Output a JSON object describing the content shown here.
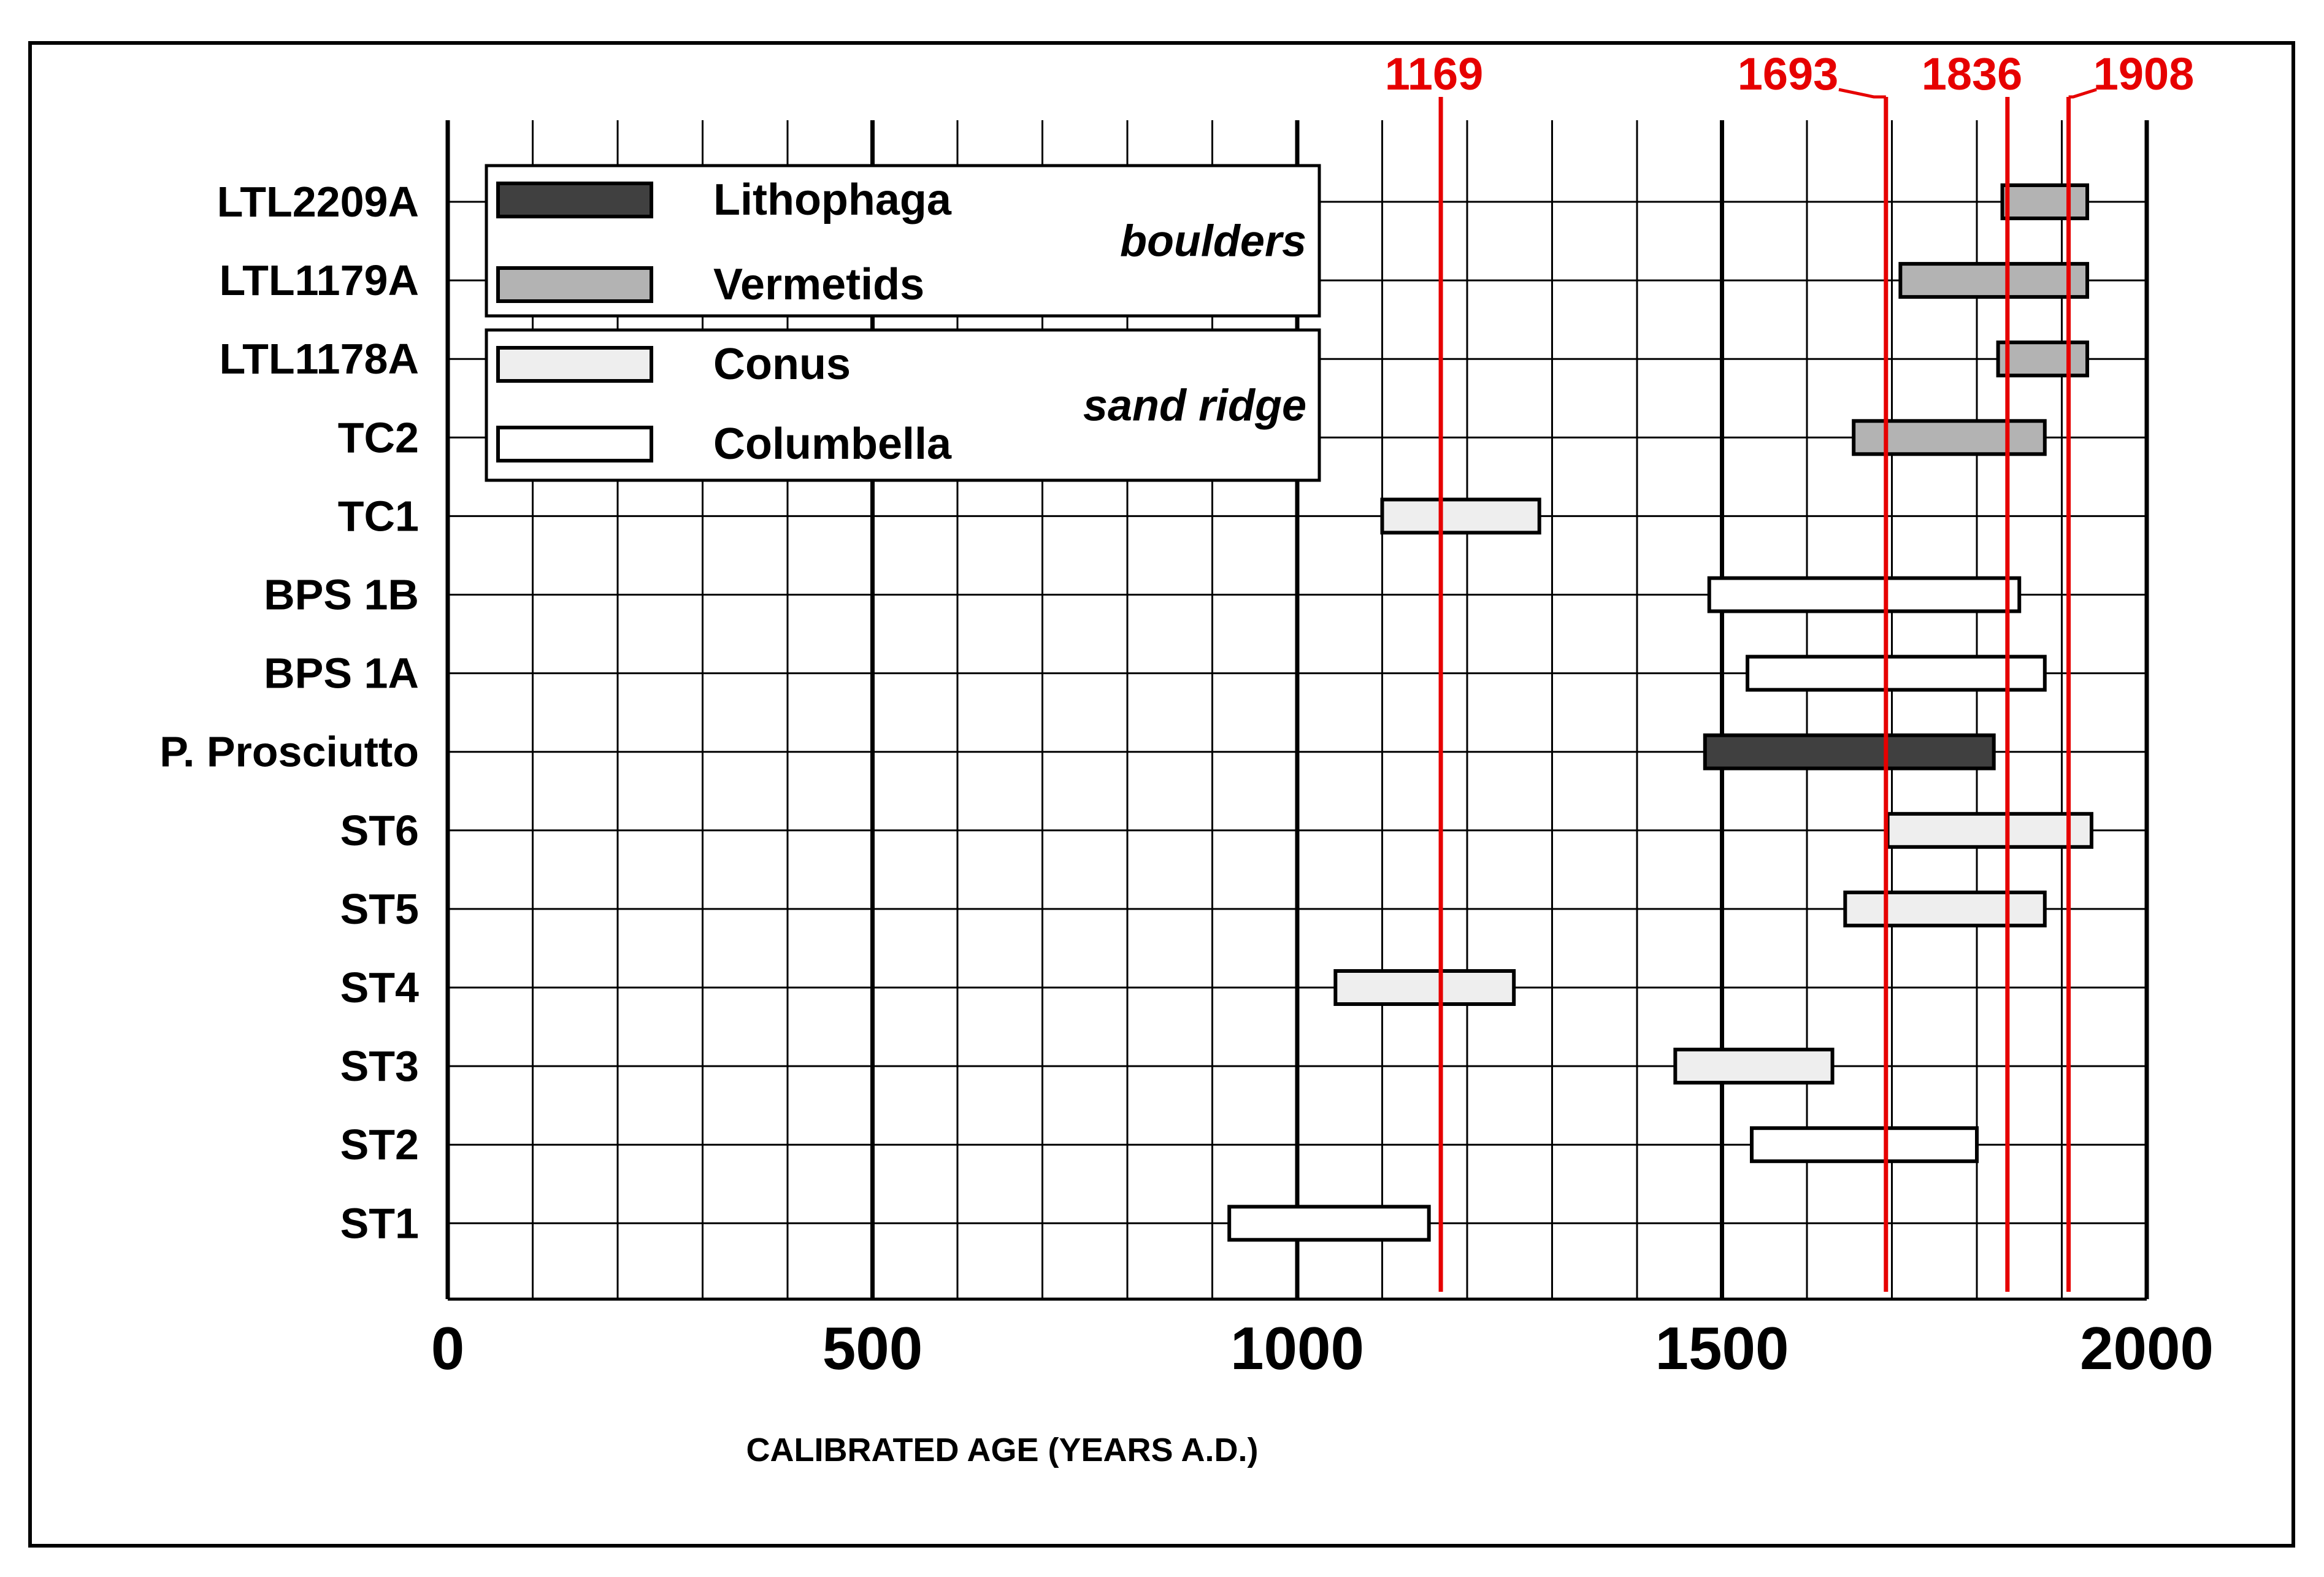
{
  "chart_data": {
    "type": "bar",
    "subtype": "floating-range",
    "xlabel": "CALIBRATED AGE (YEARS A.D.)",
    "xlim": [
      0,
      2000
    ],
    "x_ticks": [
      0,
      500,
      1000,
      1500,
      2000
    ],
    "x_minor_step": 100,
    "grid": true,
    "legend_position": "top-left",
    "categories": [
      "LTL2209A",
      "LTL1179A",
      "LTL1178A",
      "TC2",
      "TC1",
      "BPS 1B",
      "BPS 1A",
      "P. Prosciutto",
      "ST6",
      "ST5",
      "ST4",
      "ST3",
      "ST2",
      "ST1"
    ],
    "ranges": [
      {
        "label": "LTL2209A",
        "start": 1830,
        "end": 1930,
        "series": "Vermetids"
      },
      {
        "label": "LTL1179A",
        "start": 1710,
        "end": 1930,
        "series": "Vermetids"
      },
      {
        "label": "LTL1178A",
        "start": 1825,
        "end": 1930,
        "series": "Vermetids"
      },
      {
        "label": "TC2",
        "start": 1655,
        "end": 1880,
        "series": "Vermetids"
      },
      {
        "label": "TC1",
        "start": 1100,
        "end": 1285,
        "series": "Conus"
      },
      {
        "label": "BPS 1B",
        "start": 1485,
        "end": 1850,
        "series": "Columbella"
      },
      {
        "label": "BPS 1A",
        "start": 1530,
        "end": 1880,
        "series": "Columbella"
      },
      {
        "label": "P. Prosciutto",
        "start": 1480,
        "end": 1820,
        "series": "Lithophaga"
      },
      {
        "label": "ST6",
        "start": 1695,
        "end": 1935,
        "series": "Conus"
      },
      {
        "label": "ST5",
        "start": 1645,
        "end": 1880,
        "series": "Conus"
      },
      {
        "label": "ST4",
        "start": 1045,
        "end": 1255,
        "series": "Conus"
      },
      {
        "label": "ST3",
        "start": 1445,
        "end": 1630,
        "series": "Conus"
      },
      {
        "label": "ST2",
        "start": 1535,
        "end": 1800,
        "series": "Columbella"
      },
      {
        "label": "ST1",
        "start": 920,
        "end": 1155,
        "series": "Columbella"
      }
    ],
    "series": [
      {
        "name": "Lithophaga",
        "color": "#404040",
        "group": "boulders"
      },
      {
        "name": "Vermetids",
        "color": "#b3b3b3",
        "group": "boulders"
      },
      {
        "name": "Conus",
        "color": "#eeeeee",
        "group": "sand ridge"
      },
      {
        "name": "Columbella",
        "color": "#ffffff",
        "group": "sand ridge"
      }
    ],
    "legend_groups": [
      "boulders",
      "sand ridge"
    ],
    "reference_lines": [
      {
        "value": 1169,
        "label": "1169",
        "color": "#e60000"
      },
      {
        "value": 1693,
        "label": "1693",
        "color": "#e60000"
      },
      {
        "value": 1836,
        "label": "1836",
        "color": "#e60000"
      },
      {
        "value": 1908,
        "label": "1908",
        "color": "#e60000"
      }
    ]
  }
}
